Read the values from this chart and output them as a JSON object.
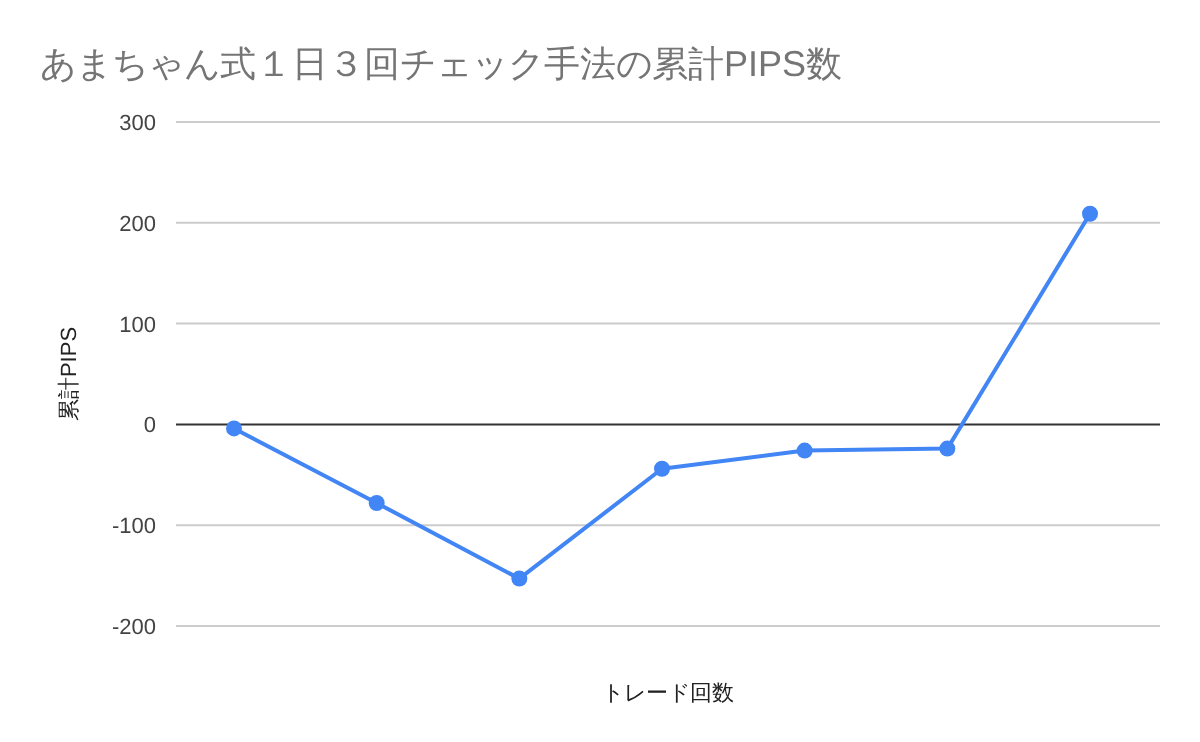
{
  "chart_data": {
    "type": "line",
    "title": "あまちゃん式１日３回チェック手法の累計PIPS数",
    "xlabel": "トレード回数",
    "ylabel": "累計PIPS",
    "categories": [
      null,
      null,
      null,
      null,
      null,
      null,
      null
    ],
    "series": [
      {
        "color": "#4285f4",
        "values": [
          -4,
          -78,
          -153,
          -44,
          -26,
          -24,
          209
        ]
      }
    ],
    "ylim": [
      -200,
      300
    ],
    "yticks": [
      -200,
      -100,
      0,
      100,
      200,
      300
    ],
    "grid": "y",
    "marker": "circle",
    "line_style": "solid"
  }
}
